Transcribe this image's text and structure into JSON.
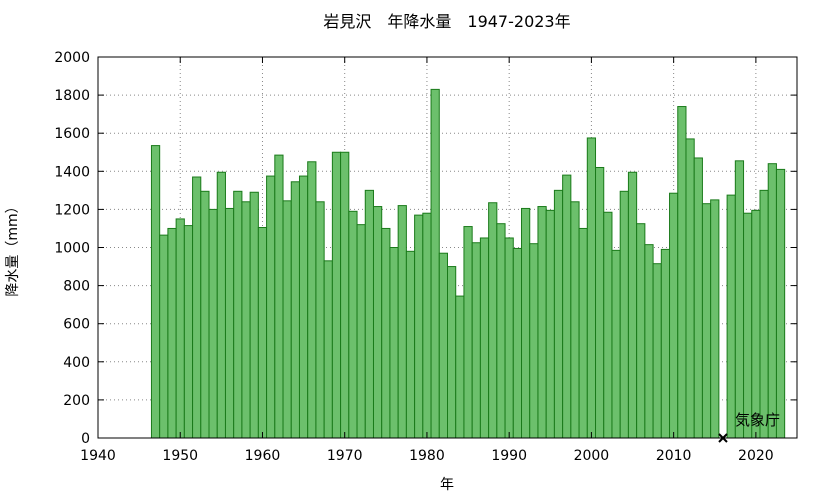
{
  "chart_data": {
    "type": "bar",
    "title": "岩見沢　年降水量　1947-2023年",
    "xlabel": "年",
    "ylabel": "降水量（mm）",
    "xlim": [
      1940,
      2025
    ],
    "ylim": [
      0,
      2000
    ],
    "xticks": [
      "1940",
      "1950",
      "1960",
      "1970",
      "1980",
      "1990",
      "2000",
      "2010",
      "2020"
    ],
    "yticks": [
      "0",
      "200",
      "400",
      "600",
      "800",
      "1000",
      "1200",
      "1400",
      "1600",
      "1800",
      "2000"
    ],
    "grid": true,
    "colors": {
      "bar_fill": "#6cc06c",
      "bar_stroke": "#1a7a1a",
      "grid": "#888888"
    },
    "years": [
      1947,
      1948,
      1949,
      1950,
      1951,
      1952,
      1953,
      1954,
      1955,
      1956,
      1957,
      1958,
      1959,
      1960,
      1961,
      1962,
      1963,
      1964,
      1965,
      1966,
      1967,
      1968,
      1969,
      1970,
      1971,
      1972,
      1973,
      1974,
      1975,
      1976,
      1977,
      1978,
      1979,
      1980,
      1981,
      1982,
      1983,
      1984,
      1985,
      1986,
      1987,
      1988,
      1989,
      1990,
      1991,
      1992,
      1993,
      1994,
      1995,
      1996,
      1997,
      1998,
      1999,
      2000,
      2001,
      2002,
      2003,
      2004,
      2005,
      2006,
      2007,
      2008,
      2009,
      2010,
      2011,
      2012,
      2013,
      2014,
      2015,
      2016,
      2017,
      2018,
      2019,
      2020,
      2021,
      2022,
      2023
    ],
    "values": [
      1535,
      1065,
      1100,
      1150,
      1115,
      1370,
      1295,
      1200,
      1395,
      1205,
      1295,
      1240,
      1290,
      1105,
      1375,
      1485,
      1245,
      1345,
      1375,
      1450,
      1240,
      930,
      1500,
      1500,
      1190,
      1120,
      1300,
      1215,
      1100,
      1000,
      1220,
      980,
      1170,
      1180,
      1830,
      970,
      900,
      745,
      1110,
      1025,
      1050,
      1235,
      1125,
      1050,
      995,
      1205,
      1020,
      1215,
      1195,
      1300,
      1380,
      1240,
      1100,
      1575,
      1420,
      1185,
      985,
      1295,
      1395,
      1125,
      1015,
      915,
      990,
      1285,
      1740,
      1570,
      1470,
      1230,
      1250,
      null,
      1275,
      1455,
      1180,
      1195,
      1300,
      1440,
      1410
    ],
    "missing_marker_year": 2016,
    "source": "気象庁"
  }
}
